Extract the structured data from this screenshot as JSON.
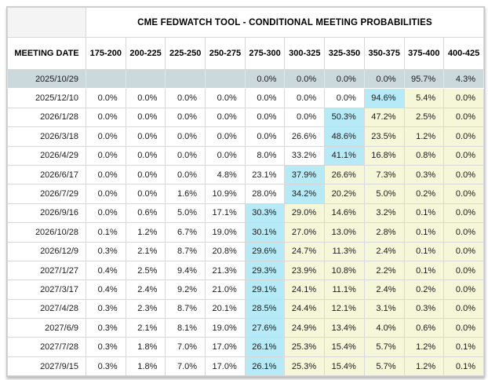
{
  "table": {
    "title": "CME FEDWATCH TOOL - CONDITIONAL MEETING PROBABILITIES",
    "meeting_date_header": "MEETING DATE",
    "rate_columns": [
      "175-200",
      "200-225",
      "225-250",
      "250-275",
      "275-300",
      "300-325",
      "325-350",
      "350-375",
      "375-400",
      "400-425"
    ],
    "rows": [
      {
        "date": "2025/10/29",
        "values": [
          "",
          "",
          "",
          "",
          "0.0%",
          "0.0%",
          "0.0%",
          "0.0%",
          "95.7%",
          "4.3%"
        ],
        "selected": true,
        "blue": -1
      },
      {
        "date": "2025/12/10",
        "values": [
          "0.0%",
          "0.0%",
          "0.0%",
          "0.0%",
          "0.0%",
          "0.0%",
          "0.0%",
          "94.6%",
          "5.4%",
          "0.0%"
        ],
        "selected": false,
        "blue": 7
      },
      {
        "date": "2026/1/28",
        "values": [
          "0.0%",
          "0.0%",
          "0.0%",
          "0.0%",
          "0.0%",
          "0.0%",
          "50.3%",
          "47.2%",
          "2.5%",
          "0.0%"
        ],
        "selected": false,
        "blue": 6
      },
      {
        "date": "2026/3/18",
        "values": [
          "0.0%",
          "0.0%",
          "0.0%",
          "0.0%",
          "0.0%",
          "26.6%",
          "48.6%",
          "23.5%",
          "1.2%",
          "0.0%"
        ],
        "selected": false,
        "blue": 6
      },
      {
        "date": "2026/4/29",
        "values": [
          "0.0%",
          "0.0%",
          "0.0%",
          "0.0%",
          "8.0%",
          "33.2%",
          "41.1%",
          "16.8%",
          "0.8%",
          "0.0%"
        ],
        "selected": false,
        "blue": 6
      },
      {
        "date": "2026/6/17",
        "values": [
          "0.0%",
          "0.0%",
          "0.0%",
          "4.8%",
          "23.1%",
          "37.9%",
          "26.6%",
          "7.3%",
          "0.3%",
          "0.0%"
        ],
        "selected": false,
        "blue": 5
      },
      {
        "date": "2026/7/29",
        "values": [
          "0.0%",
          "0.0%",
          "1.6%",
          "10.9%",
          "28.0%",
          "34.2%",
          "20.2%",
          "5.0%",
          "0.2%",
          "0.0%"
        ],
        "selected": false,
        "blue": 5
      },
      {
        "date": "2026/9/16",
        "values": [
          "0.0%",
          "0.6%",
          "5.0%",
          "17.1%",
          "30.3%",
          "29.0%",
          "14.6%",
          "3.2%",
          "0.1%",
          "0.0%"
        ],
        "selected": false,
        "blue": 4
      },
      {
        "date": "2026/10/28",
        "values": [
          "0.1%",
          "1.2%",
          "6.7%",
          "19.0%",
          "30.1%",
          "27.0%",
          "13.0%",
          "2.8%",
          "0.1%",
          "0.0%"
        ],
        "selected": false,
        "blue": 4
      },
      {
        "date": "2026/12/9",
        "values": [
          "0.3%",
          "2.1%",
          "8.7%",
          "20.8%",
          "29.6%",
          "24.7%",
          "11.3%",
          "2.4%",
          "0.1%",
          "0.0%"
        ],
        "selected": false,
        "blue": 4
      },
      {
        "date": "2027/1/27",
        "values": [
          "0.4%",
          "2.5%",
          "9.4%",
          "21.3%",
          "29.3%",
          "23.9%",
          "10.8%",
          "2.2%",
          "0.1%",
          "0.0%"
        ],
        "selected": false,
        "blue": 4
      },
      {
        "date": "2027/3/17",
        "values": [
          "0.4%",
          "2.4%",
          "9.2%",
          "21.0%",
          "29.1%",
          "24.1%",
          "11.1%",
          "2.4%",
          "0.2%",
          "0.0%"
        ],
        "selected": false,
        "blue": 4
      },
      {
        "date": "2027/4/28",
        "values": [
          "0.3%",
          "2.3%",
          "8.7%",
          "20.1%",
          "28.5%",
          "24.4%",
          "12.1%",
          "3.1%",
          "0.3%",
          "0.0%"
        ],
        "selected": false,
        "blue": 4
      },
      {
        "date": "2027/6/9",
        "values": [
          "0.3%",
          "2.1%",
          "8.1%",
          "19.0%",
          "27.6%",
          "24.9%",
          "13.4%",
          "4.0%",
          "0.6%",
          "0.0%"
        ],
        "selected": false,
        "blue": 4
      },
      {
        "date": "2027/7/28",
        "values": [
          "0.3%",
          "1.8%",
          "7.0%",
          "17.0%",
          "26.1%",
          "25.3%",
          "15.4%",
          "5.7%",
          "1.2%",
          "0.1%"
        ],
        "selected": false,
        "blue": 4
      },
      {
        "date": "2027/9/15",
        "values": [
          "0.3%",
          "1.8%",
          "7.0%",
          "17.0%",
          "26.1%",
          "25.3%",
          "15.4%",
          "5.7%",
          "1.2%",
          "0.1%"
        ],
        "selected": false,
        "blue": 4
      }
    ],
    "colors": {
      "selected_row_bg": "#ccd9dc",
      "highlight_blue": "#b7eaf7",
      "highlight_yellow": "#f6f6d9",
      "border": "#d8d8d8",
      "corner_bg": "#f4f4f4",
      "header_text": "#000000",
      "cell_text": "#1a1a1a"
    }
  }
}
